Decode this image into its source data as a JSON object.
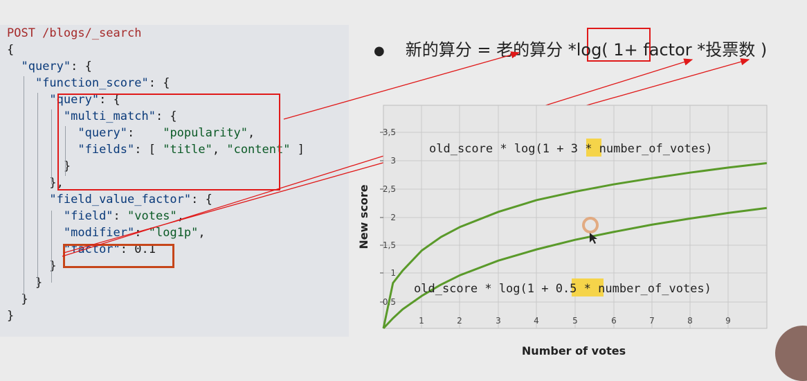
{
  "code": {
    "lines": [
      [
        {
          "t": "POST /blogs/_search",
          "c": "m"
        }
      ],
      [
        {
          "t": "{",
          "c": "n"
        }
      ],
      [
        {
          "t": "  ",
          "c": "n"
        },
        {
          "t": "\"query\"",
          "c": "k"
        },
        {
          "t": ": {",
          "c": "n"
        }
      ],
      [
        {
          "t": "    ",
          "c": "n"
        },
        {
          "t": "\"function_score\"",
          "c": "k"
        },
        {
          "t": ": {",
          "c": "n"
        }
      ],
      [
        {
          "t": "      ",
          "c": "n"
        },
        {
          "t": "\"query\"",
          "c": "k"
        },
        {
          "t": ": {",
          "c": "n"
        }
      ],
      [
        {
          "t": "        ",
          "c": "n"
        },
        {
          "t": "\"multi_match\"",
          "c": "k"
        },
        {
          "t": ": {",
          "c": "n"
        }
      ],
      [
        {
          "t": "          ",
          "c": "n"
        },
        {
          "t": "\"query\"",
          "c": "k"
        },
        {
          "t": ":    ",
          "c": "n"
        },
        {
          "t": "\"popularity\"",
          "c": "s"
        },
        {
          "t": ",",
          "c": "n"
        }
      ],
      [
        {
          "t": "          ",
          "c": "n"
        },
        {
          "t": "\"fields\"",
          "c": "k"
        },
        {
          "t": ": [ ",
          "c": "n"
        },
        {
          "t": "\"title\"",
          "c": "s"
        },
        {
          "t": ", ",
          "c": "n"
        },
        {
          "t": "\"content\"",
          "c": "s"
        },
        {
          "t": " ]",
          "c": "n"
        }
      ],
      [
        {
          "t": "        }",
          "c": "n"
        }
      ],
      [
        {
          "t": "      },",
          "c": "n"
        }
      ],
      [
        {
          "t": "      ",
          "c": "n"
        },
        {
          "t": "\"field_value_factor\"",
          "c": "k"
        },
        {
          "t": ": {",
          "c": "n"
        }
      ],
      [
        {
          "t": "        ",
          "c": "n"
        },
        {
          "t": "\"field\"",
          "c": "k"
        },
        {
          "t": ": ",
          "c": "n"
        },
        {
          "t": "\"votes\"",
          "c": "s"
        },
        {
          "t": ",",
          "c": "n"
        }
      ],
      [
        {
          "t": "        ",
          "c": "n"
        },
        {
          "t": "\"modifier\"",
          "c": "k"
        },
        {
          "t": ": ",
          "c": "n"
        },
        {
          "t": "\"log1p\"",
          "c": "s"
        },
        {
          "t": ",",
          "c": "n"
        }
      ],
      [
        {
          "t": "        ",
          "c": "n"
        },
        {
          "t": "\"factor\"",
          "c": "k"
        },
        {
          "t": ": 0.1",
          "c": "n"
        }
      ],
      [
        {
          "t": "      }",
          "c": "n"
        }
      ],
      [
        {
          "t": "    }",
          "c": "n"
        }
      ],
      [
        {
          "t": "  }",
          "c": "n"
        }
      ],
      [
        {
          "t": "}",
          "c": "n"
        }
      ]
    ]
  },
  "formula": {
    "bullet": "●",
    "lhs": "新的算分 = 老的算分 * ",
    "log_open": "log( 1 ",
    "rest": "+ factor *投票数 )"
  },
  "chart_data": {
    "type": "line",
    "xlabel": "Number of votes",
    "ylabel": "New score",
    "xlim": [
      0,
      10
    ],
    "ylim": [
      0,
      4
    ],
    "x_ticks": [
      "1",
      "2",
      "3",
      "4",
      "5",
      "6",
      "7",
      "8",
      "9"
    ],
    "y_ticks": [
      "0,5",
      "1",
      "1,5",
      "2",
      "2,5",
      "3",
      "3,5"
    ],
    "series": [
      {
        "name": "old_score * log(1 + 3 * number_of_votes)",
        "factor": 3,
        "x": [
          0,
          0.25,
          0.5,
          1,
          1.5,
          2,
          3,
          4,
          5,
          6,
          7,
          8,
          9,
          10
        ],
        "y": [
          0,
          0.81,
          1.03,
          1.39,
          1.63,
          1.81,
          2.08,
          2.29,
          2.44,
          2.57,
          2.68,
          2.78,
          2.87,
          2.95
        ]
      },
      {
        "name": "old_score * log(1 + 0.5 * number_of_votes)",
        "factor": 0.5,
        "x": [
          0,
          0.25,
          0.5,
          1,
          1.5,
          2,
          3,
          4,
          5,
          6,
          7,
          8,
          9,
          10
        ],
        "y": [
          0,
          0.18,
          0.34,
          0.58,
          0.78,
          0.95,
          1.21,
          1.41,
          1.58,
          1.72,
          1.85,
          1.96,
          2.06,
          2.15
        ]
      }
    ],
    "annotations": [
      {
        "pre": "old_score * log(1 + ",
        "hl": "3",
        "post": " * number_of_votes)"
      },
      {
        "pre": "old_score * log(1 + ",
        "hl": "0.5",
        "post": " * number_of_votes)"
      }
    ],
    "line_color": "#5a9a2a",
    "highlight_color": "#f5d44a",
    "grid": true
  },
  "colors": {
    "red": "#e01919",
    "orange": "#c6461a"
  }
}
